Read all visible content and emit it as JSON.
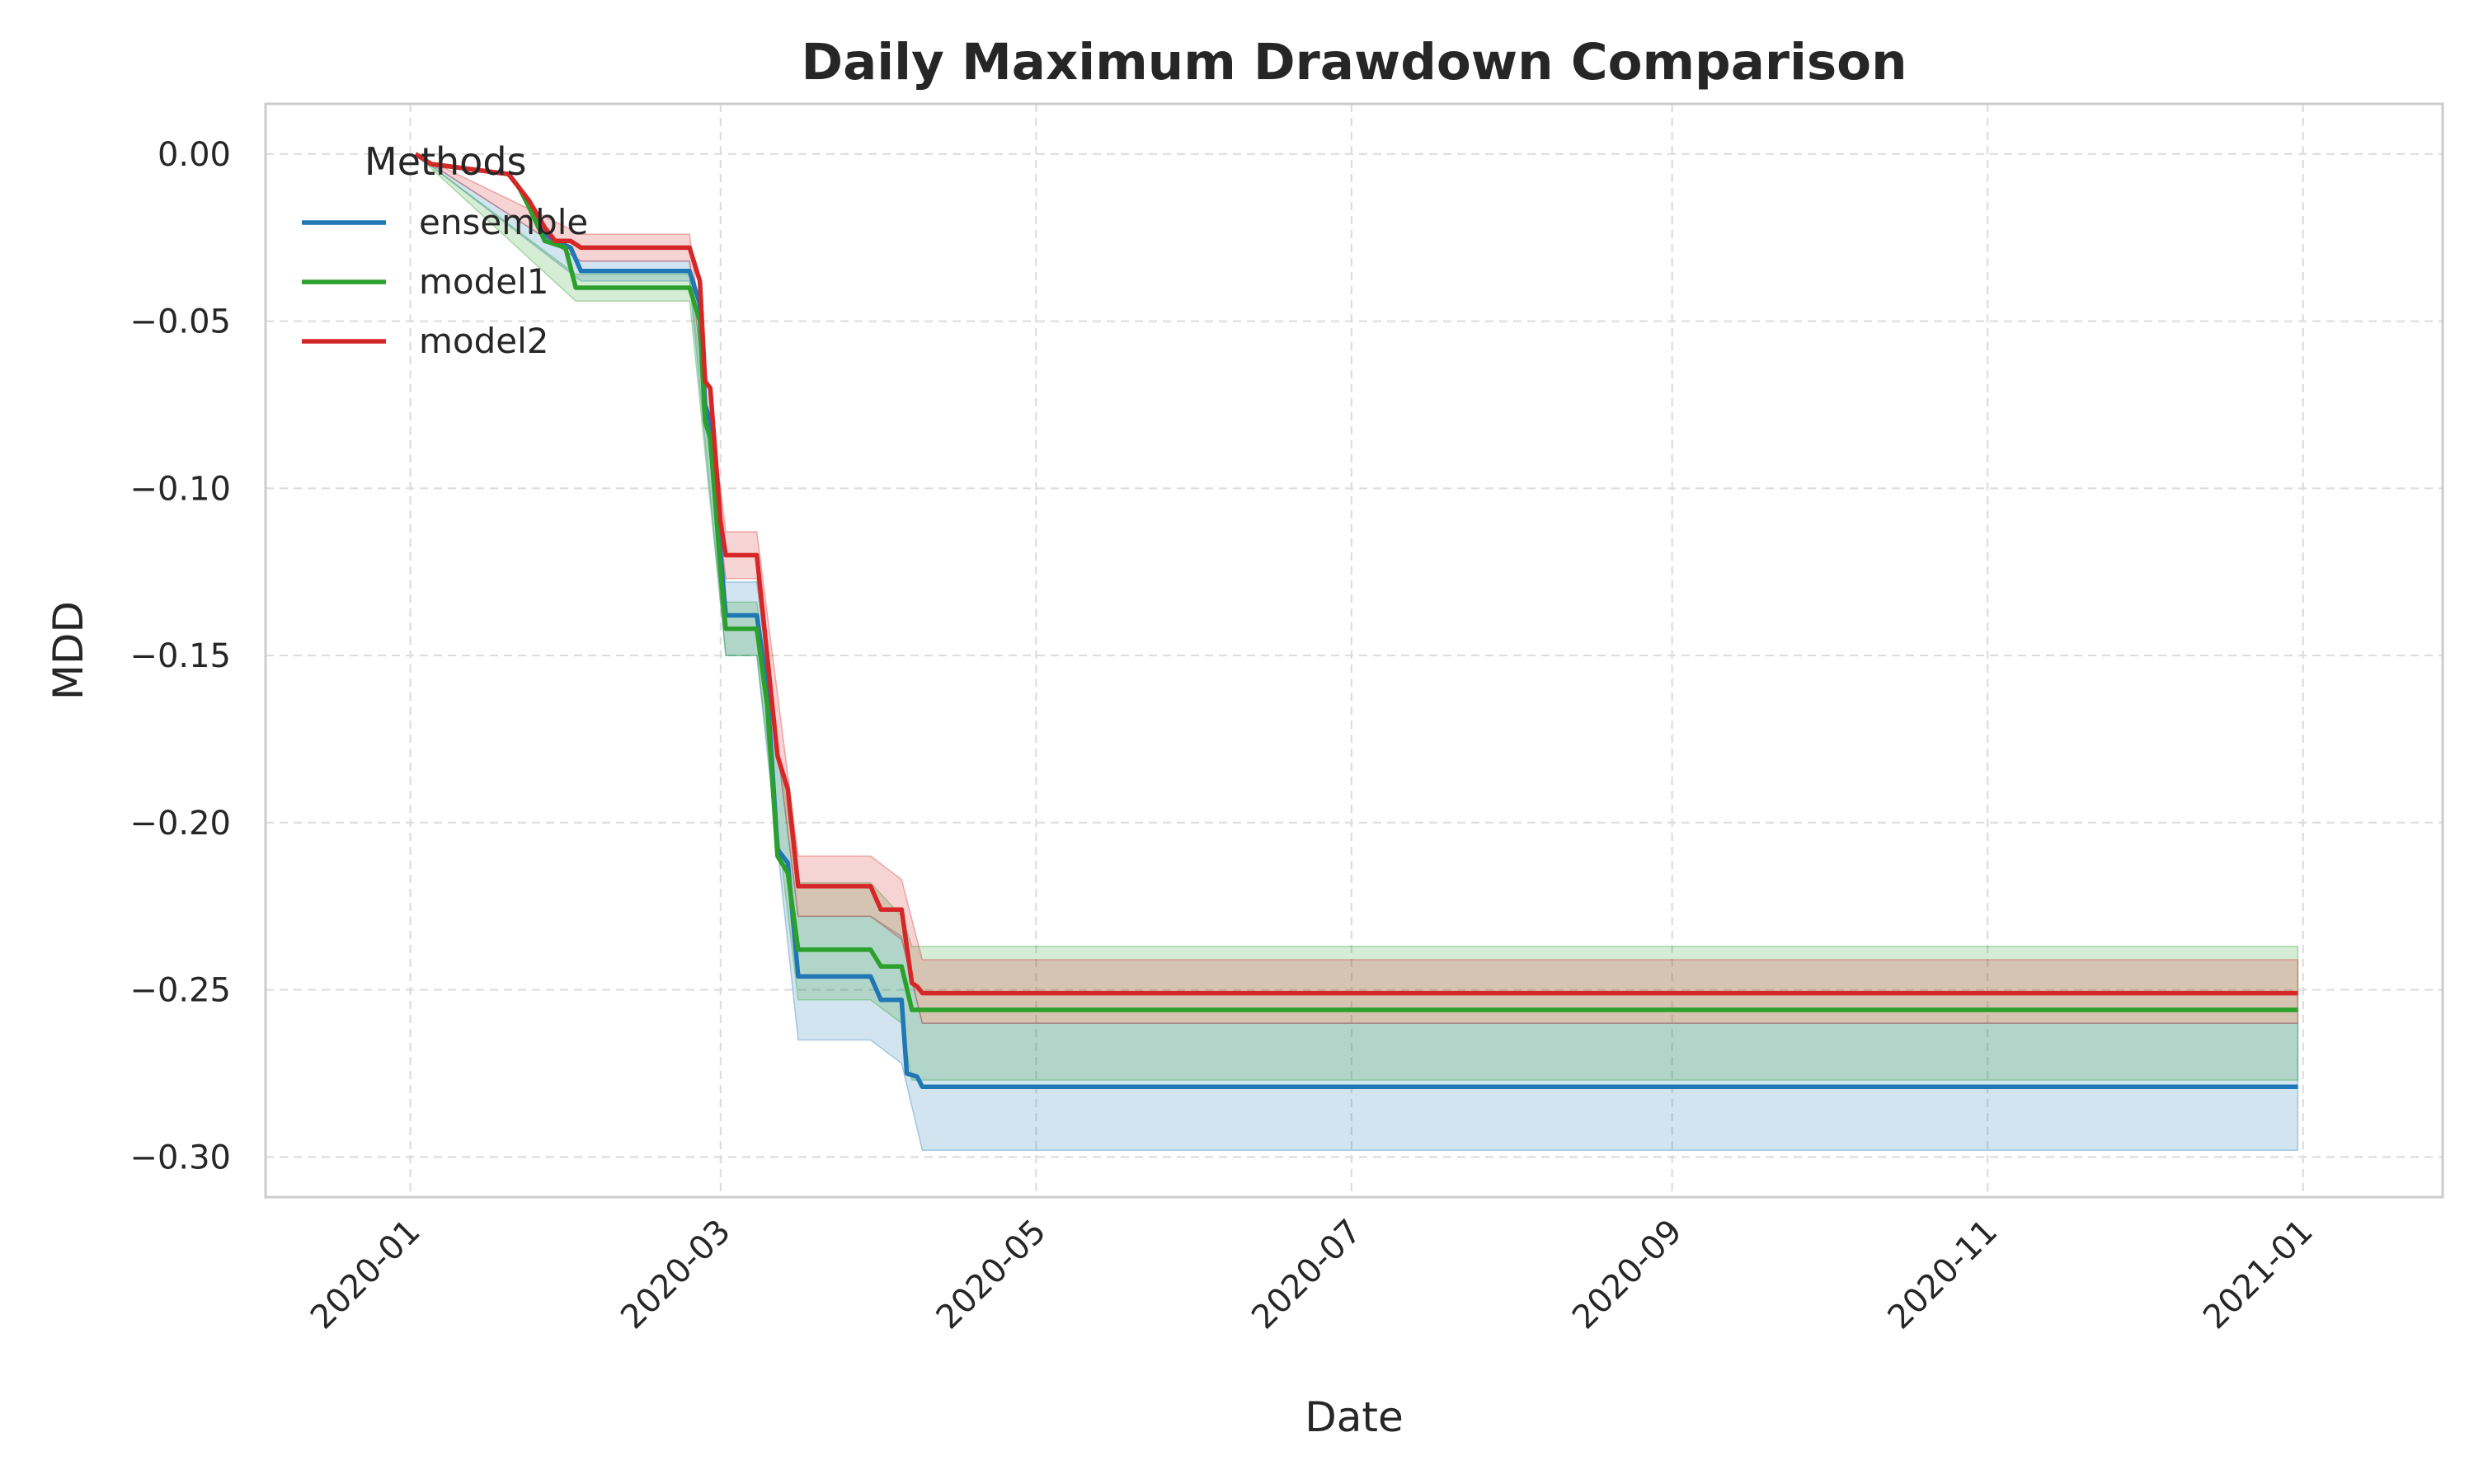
{
  "chart_data": {
    "type": "line",
    "title": "Daily Maximum Drawdown Comparison",
    "xlabel": "Date",
    "ylabel": "MDD",
    "xlim": [
      "2019-12-04",
      "2021-01-28"
    ],
    "ylim": [
      -0.312,
      0.015
    ],
    "x_ticks": [
      "2020-01",
      "2020-03",
      "2020-05",
      "2020-07",
      "2020-09",
      "2020-11",
      "2021-01"
    ],
    "x_tick_dates": [
      "2020-01-01",
      "2020-03-01",
      "2020-05-01",
      "2020-07-01",
      "2020-09-01",
      "2020-11-01",
      "2021-01-01"
    ],
    "y_ticks": [
      0.0,
      -0.05,
      -0.1,
      -0.15,
      -0.2,
      -0.25,
      -0.3
    ],
    "y_tick_labels": [
      "0.00",
      "−0.05",
      "−0.10",
      "−0.15",
      "−0.20",
      "−0.25",
      "−0.30"
    ],
    "grid": true,
    "legend": {
      "title": "Methods",
      "position": "top-left"
    },
    "series": [
      {
        "name": "ensemble",
        "color": "#1f77b4",
        "points": [
          [
            "2020-01-02",
            0.0
          ],
          [
            "2020-01-05",
            -0.003
          ],
          [
            "2020-01-10",
            -0.004
          ],
          [
            "2020-01-20",
            -0.006
          ],
          [
            "2020-01-22",
            -0.01
          ],
          [
            "2020-01-24",
            -0.015
          ],
          [
            "2020-01-27",
            -0.024
          ],
          [
            "2020-01-29",
            -0.026
          ],
          [
            "2020-02-01",
            -0.028
          ],
          [
            "2020-02-03",
            -0.035
          ],
          [
            "2020-02-24",
            -0.035
          ],
          [
            "2020-02-26",
            -0.045
          ],
          [
            "2020-02-27",
            -0.075
          ],
          [
            "2020-02-28",
            -0.08
          ],
          [
            "2020-03-01",
            -0.12
          ],
          [
            "2020-03-02",
            -0.138
          ],
          [
            "2020-03-08",
            -0.138
          ],
          [
            "2020-03-10",
            -0.16
          ],
          [
            "2020-03-12",
            -0.208
          ],
          [
            "2020-03-14",
            -0.212
          ],
          [
            "2020-03-16",
            -0.246
          ],
          [
            "2020-03-30",
            -0.246
          ],
          [
            "2020-04-01",
            -0.253
          ],
          [
            "2020-04-05",
            -0.253
          ],
          [
            "2020-04-06",
            -0.275
          ],
          [
            "2020-04-08",
            -0.276
          ],
          [
            "2020-04-09",
            -0.279
          ],
          [
            "2020-12-31",
            -0.279
          ]
        ],
        "band": [
          [
            "2020-01-02",
            0.0,
            0.0
          ],
          [
            "2020-02-03",
            -0.032,
            -0.038
          ],
          [
            "2020-02-24",
            -0.032,
            -0.038
          ],
          [
            "2020-03-02",
            -0.128,
            -0.15
          ],
          [
            "2020-03-08",
            -0.128,
            -0.15
          ],
          [
            "2020-03-16",
            -0.228,
            -0.265
          ],
          [
            "2020-03-30",
            -0.228,
            -0.265
          ],
          [
            "2020-04-05",
            -0.234,
            -0.272
          ],
          [
            "2020-04-09",
            -0.26,
            -0.298
          ],
          [
            "2020-12-31",
            -0.26,
            -0.298
          ]
        ]
      },
      {
        "name": "model1",
        "color": "#2ca02c",
        "points": [
          [
            "2020-01-02",
            0.0
          ],
          [
            "2020-01-05",
            -0.003
          ],
          [
            "2020-01-10",
            -0.004
          ],
          [
            "2020-01-20",
            -0.006
          ],
          [
            "2020-01-22",
            -0.01
          ],
          [
            "2020-01-24",
            -0.016
          ],
          [
            "2020-01-27",
            -0.026
          ],
          [
            "2020-01-31",
            -0.028
          ],
          [
            "2020-02-02",
            -0.04
          ],
          [
            "2020-02-24",
            -0.04
          ],
          [
            "2020-02-26",
            -0.05
          ],
          [
            "2020-02-27",
            -0.08
          ],
          [
            "2020-02-28",
            -0.085
          ],
          [
            "2020-03-01",
            -0.125
          ],
          [
            "2020-03-02",
            -0.142
          ],
          [
            "2020-03-08",
            -0.142
          ],
          [
            "2020-03-10",
            -0.165
          ],
          [
            "2020-03-12",
            -0.21
          ],
          [
            "2020-03-14",
            -0.215
          ],
          [
            "2020-03-16",
            -0.238
          ],
          [
            "2020-03-30",
            -0.238
          ],
          [
            "2020-04-01",
            -0.243
          ],
          [
            "2020-04-05",
            -0.243
          ],
          [
            "2020-04-07",
            -0.256
          ],
          [
            "2020-12-31",
            -0.256
          ]
        ],
        "band": [
          [
            "2020-01-02",
            0.0,
            0.0
          ],
          [
            "2020-02-02",
            -0.036,
            -0.044
          ],
          [
            "2020-02-24",
            -0.036,
            -0.044
          ],
          [
            "2020-03-02",
            -0.134,
            -0.15
          ],
          [
            "2020-03-08",
            -0.134,
            -0.15
          ],
          [
            "2020-03-16",
            -0.218,
            -0.253
          ],
          [
            "2020-03-30",
            -0.218,
            -0.253
          ],
          [
            "2020-04-05",
            -0.228,
            -0.26
          ],
          [
            "2020-04-07",
            -0.237,
            -0.277
          ],
          [
            "2020-12-31",
            -0.237,
            -0.277
          ]
        ]
      },
      {
        "name": "model2",
        "color": "#d62728",
        "points": [
          [
            "2020-01-02",
            0.0
          ],
          [
            "2020-01-05",
            -0.003
          ],
          [
            "2020-01-10",
            -0.004
          ],
          [
            "2020-01-20",
            -0.006
          ],
          [
            "2020-01-22",
            -0.01
          ],
          [
            "2020-01-24",
            -0.014
          ],
          [
            "2020-01-27",
            -0.022
          ],
          [
            "2020-01-29",
            -0.026
          ],
          [
            "2020-02-01",
            -0.026
          ],
          [
            "2020-02-03",
            -0.028
          ],
          [
            "2020-02-24",
            -0.028
          ],
          [
            "2020-02-26",
            -0.038
          ],
          [
            "2020-02-27",
            -0.068
          ],
          [
            "2020-02-28",
            -0.07
          ],
          [
            "2020-03-01",
            -0.11
          ],
          [
            "2020-03-02",
            -0.12
          ],
          [
            "2020-03-08",
            -0.12
          ],
          [
            "2020-03-10",
            -0.15
          ],
          [
            "2020-03-12",
            -0.18
          ],
          [
            "2020-03-14",
            -0.19
          ],
          [
            "2020-03-16",
            -0.219
          ],
          [
            "2020-03-30",
            -0.219
          ],
          [
            "2020-04-01",
            -0.226
          ],
          [
            "2020-04-05",
            -0.226
          ],
          [
            "2020-04-07",
            -0.248
          ],
          [
            "2020-04-08",
            -0.249
          ],
          [
            "2020-04-09",
            -0.251
          ],
          [
            "2020-12-31",
            -0.251
          ]
        ],
        "band": [
          [
            "2020-01-02",
            0.0,
            0.0
          ],
          [
            "2020-02-03",
            -0.024,
            -0.032
          ],
          [
            "2020-02-24",
            -0.024,
            -0.032
          ],
          [
            "2020-03-02",
            -0.113,
            -0.127
          ],
          [
            "2020-03-08",
            -0.113,
            -0.127
          ],
          [
            "2020-03-16",
            -0.21,
            -0.228
          ],
          [
            "2020-03-30",
            -0.21,
            -0.228
          ],
          [
            "2020-04-05",
            -0.217,
            -0.235
          ],
          [
            "2020-04-09",
            -0.241,
            -0.26
          ],
          [
            "2020-12-31",
            -0.241,
            -0.26
          ]
        ]
      }
    ]
  }
}
